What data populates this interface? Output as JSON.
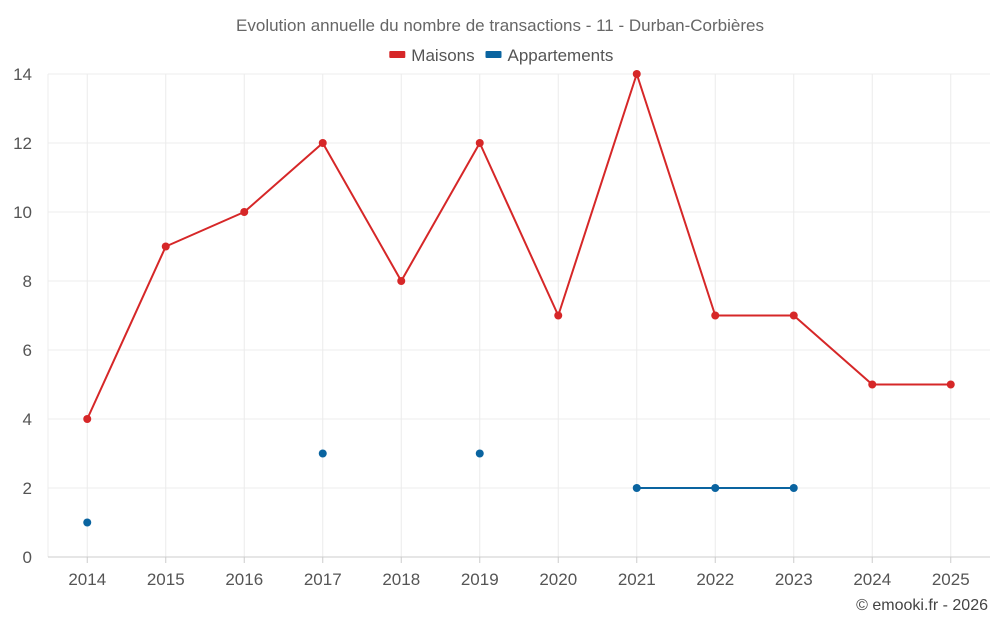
{
  "chart_data": {
    "type": "line",
    "title": "Evolution annuelle du nombre de transactions - 11 - Durban-Corbières",
    "categories": [
      "2014",
      "2015",
      "2016",
      "2017",
      "2018",
      "2019",
      "2020",
      "2021",
      "2022",
      "2023",
      "2024",
      "2025"
    ],
    "ylim": [
      0,
      14
    ],
    "yticks": [
      0,
      2,
      4,
      6,
      8,
      10,
      12,
      14
    ],
    "grid": true,
    "legend_position": "top-center",
    "series": [
      {
        "name": "Maisons",
        "color": "#d62728",
        "values": [
          4,
          9,
          10,
          12,
          8,
          12,
          7,
          14,
          7,
          7,
          5,
          5
        ]
      },
      {
        "name": "Appartements",
        "color": "#0a64a0",
        "values": [
          1,
          null,
          null,
          3,
          null,
          3,
          null,
          2,
          2,
          2,
          null,
          null
        ]
      }
    ],
    "xlabel": "",
    "ylabel": ""
  },
  "credit": "© emooki.fr - 2026"
}
